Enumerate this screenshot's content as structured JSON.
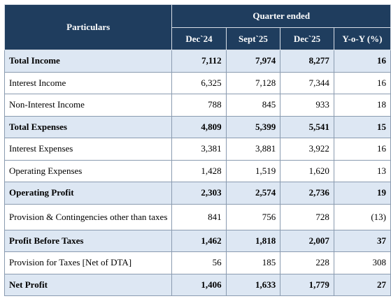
{
  "header": {
    "particulars": "Particulars",
    "group": "Quarter ended",
    "columns": [
      "Dec`24",
      "Sept`25",
      "Dec`25",
      "Y-o-Y (%)"
    ]
  },
  "rows": [
    {
      "label": "Total Income",
      "values": [
        "7,112",
        "7,974",
        "8,277",
        "16"
      ],
      "bold": true
    },
    {
      "label": "Interest Income",
      "values": [
        "6,325",
        "7,128",
        "7,344",
        "16"
      ],
      "bold": false
    },
    {
      "label": "Non-Interest Income",
      "values": [
        "788",
        "845",
        "933",
        "18"
      ],
      "bold": false
    },
    {
      "label": "Total Expenses",
      "values": [
        "4,809",
        "5,399",
        "5,541",
        "15"
      ],
      "bold": true
    },
    {
      "label": "Interest Expenses",
      "values": [
        "3,381",
        "3,881",
        "3,922",
        "16"
      ],
      "bold": false
    },
    {
      "label": "Operating Expenses",
      "values": [
        "1,428",
        "1,519",
        "1,620",
        "13"
      ],
      "bold": false
    },
    {
      "label": "Operating Profit",
      "values": [
        "2,303",
        "2,574",
        "2,736",
        "19"
      ],
      "bold": true
    },
    {
      "label": "Provision & Contingencies other than taxes",
      "values": [
        "841",
        "756",
        "728",
        "(13)"
      ],
      "bold": false
    },
    {
      "label": "Profit Before Taxes",
      "values": [
        "1,462",
        "1,818",
        "2,007",
        "37"
      ],
      "bold": true
    },
    {
      "label": "Provision for Taxes [Net of DTA]",
      "values": [
        "56",
        "185",
        "228",
        "308"
      ],
      "bold": false
    },
    {
      "label": "Net Profit",
      "values": [
        "1,406",
        "1,633",
        "1,779",
        "27"
      ],
      "bold": true
    }
  ]
}
